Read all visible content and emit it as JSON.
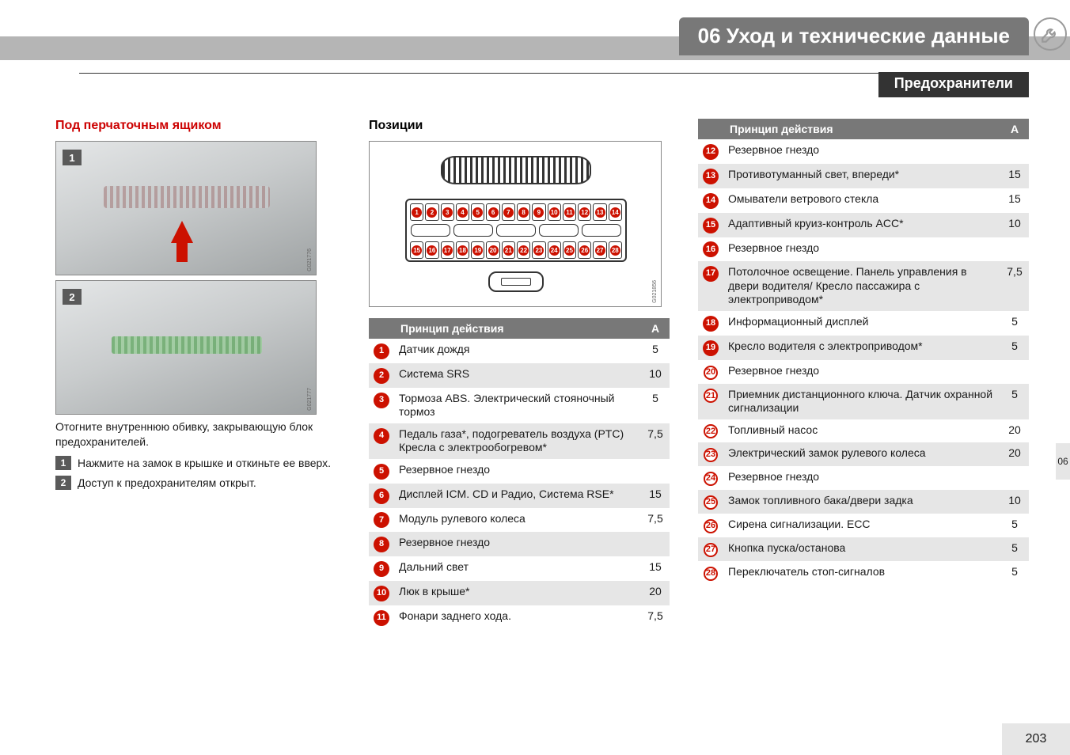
{
  "header": {
    "chapter": "06 Уход и технические данные",
    "section": "Предохранители"
  },
  "left": {
    "title": "Под перчаточным ящиком",
    "photo1_code": "G021776",
    "photo2_code": "G021777",
    "caption": "Отогните внутреннюю обивку, закрывающую блок предохранителей.",
    "steps": [
      {
        "n": "1",
        "text": "Нажмите на замок в крышке и откиньте ее вверх."
      },
      {
        "n": "2",
        "text": "Доступ к предохранителям открыт."
      }
    ]
  },
  "mid": {
    "title": "Позиции",
    "diagram_code": "G021856",
    "table_header": "Принцип действия",
    "table_header_a": "A",
    "rows": [
      {
        "n": 1,
        "badge": "red",
        "text": "Датчик дождя",
        "a": "5"
      },
      {
        "n": 2,
        "badge": "red",
        "text": "Система SRS",
        "a": "10"
      },
      {
        "n": 3,
        "badge": "red",
        "text": "Тормоза ABS. Электрический стояночный тормоз",
        "a": "5"
      },
      {
        "n": 4,
        "badge": "red",
        "text": "Педаль газа*, подогреватель воздуха (PTC) Кресла с электрообогревом*",
        "a": "7,5"
      },
      {
        "n": 5,
        "badge": "red",
        "text": "Резервное гнездо",
        "a": ""
      },
      {
        "n": 6,
        "badge": "red",
        "text": "Дисплей ICM. CD и Радио, Система RSE*",
        "a": "15"
      },
      {
        "n": 7,
        "badge": "red",
        "text": "Модуль рулевого колеса",
        "a": "7,5"
      },
      {
        "n": 8,
        "badge": "red",
        "text": "Резервное гнездо",
        "a": ""
      },
      {
        "n": 9,
        "badge": "red",
        "text": "Дальний свет",
        "a": "15"
      },
      {
        "n": 10,
        "badge": "red",
        "text": "Люк в крыше*",
        "a": "20"
      },
      {
        "n": 11,
        "badge": "red",
        "text": "Фонари заднего хода.",
        "a": "7,5"
      }
    ]
  },
  "right": {
    "table_header": "Принцип действия",
    "table_header_a": "A",
    "rows": [
      {
        "n": 12,
        "badge": "red",
        "text": "Резервное гнездо",
        "a": ""
      },
      {
        "n": 13,
        "badge": "red",
        "text": "Противотуманный свет, впереди*",
        "a": "15"
      },
      {
        "n": 14,
        "badge": "red",
        "text": "Омыватели ветрового стекла",
        "a": "15"
      },
      {
        "n": 15,
        "badge": "red",
        "text": "Адаптивный круиз-контроль ACC*",
        "a": "10"
      },
      {
        "n": 16,
        "badge": "red",
        "text": "Резервное гнездо",
        "a": ""
      },
      {
        "n": 17,
        "badge": "red",
        "text": "Потолочное освещение. Панель управления в двери водителя/ Кресло пассажира с электроприводом*",
        "a": "7,5"
      },
      {
        "n": 18,
        "badge": "red",
        "text": "Информационный дисплей",
        "a": "5"
      },
      {
        "n": 19,
        "badge": "red",
        "text": "Кресло водителя с электроприводом*",
        "a": "5"
      },
      {
        "n": 20,
        "badge": "white",
        "text": "Резервное гнездо",
        "a": ""
      },
      {
        "n": 21,
        "badge": "white",
        "text": "Приемник дистанционного ключа. Датчик охранной сигнализации",
        "a": "5"
      },
      {
        "n": 22,
        "badge": "white",
        "text": "Топливный насос",
        "a": "20"
      },
      {
        "n": 23,
        "badge": "white",
        "text": "Электрический замок рулевого колеса",
        "a": "20"
      },
      {
        "n": 24,
        "badge": "white",
        "text": "Резервное гнездо",
        "a": ""
      },
      {
        "n": 25,
        "badge": "white",
        "text": "Замок топливного бака/двери задка",
        "a": "10"
      },
      {
        "n": 26,
        "badge": "white",
        "text": "Сирена сигнализации. ECC",
        "a": "5"
      },
      {
        "n": 27,
        "badge": "white",
        "text": "Кнопка пуска/останова",
        "a": "5"
      },
      {
        "n": 28,
        "badge": "white",
        "text": "Переключатель стоп-сигналов",
        "a": "5"
      }
    ]
  },
  "page_number": "203",
  "side_chapter": "06",
  "colors": {
    "accent_red": "#c10",
    "grey_header": "#787878",
    "row_alt": "#e6e6e6"
  }
}
